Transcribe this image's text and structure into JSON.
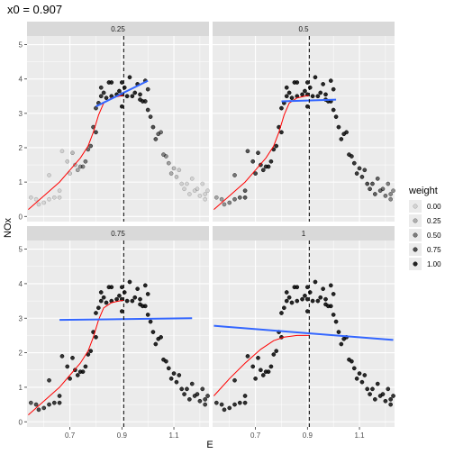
{
  "chart_data": {
    "type": "scatter",
    "title": "x0 =  0.907",
    "xlabel": "E",
    "ylabel": "NOx",
    "xlim": [
      0.535,
      1.235
    ],
    "ylim": [
      -0.15,
      5.25
    ],
    "x_ticks": [
      0.7,
      0.9,
      1.1
    ],
    "x_tick_labels": [
      "0.7",
      "0.9",
      "1.1"
    ],
    "y_ticks": [
      0,
      1,
      2,
      3,
      4,
      5
    ],
    "y_tick_labels": [
      "0",
      "1",
      "2",
      "3",
      "4",
      "5"
    ],
    "x0": 0.907,
    "grid": true,
    "legend": {
      "title": "weight",
      "position": "right",
      "entries": [
        {
          "label": "0.00",
          "alpha": 0.12
        },
        {
          "label": "0.25",
          "alpha": 0.3
        },
        {
          "label": "0.50",
          "alpha": 0.55
        },
        {
          "label": "0.75",
          "alpha": 0.78
        },
        {
          "label": "1.00",
          "alpha": 1.0
        }
      ]
    },
    "colors": {
      "panel_bg": "#ebebeb",
      "strip_bg": "#d9d9d9",
      "grid": "#ffffff",
      "loess": "#ff0000",
      "local_fit": "#3366ff",
      "vline": "#000000"
    },
    "points": [
      [
        0.55,
        0.55
      ],
      [
        0.57,
        0.5
      ],
      [
        0.58,
        0.35
      ],
      [
        0.6,
        0.4
      ],
      [
        0.62,
        0.5
      ],
      [
        0.62,
        1.2
      ],
      [
        0.64,
        0.55
      ],
      [
        0.66,
        0.55
      ],
      [
        0.66,
        0.75
      ],
      [
        0.67,
        1.9
      ],
      [
        0.69,
        1.6
      ],
      [
        0.7,
        1.25
      ],
      [
        0.71,
        1.85
      ],
      [
        0.72,
        1.5
      ],
      [
        0.73,
        1.35
      ],
      [
        0.74,
        1.45
      ],
      [
        0.75,
        1.45
      ],
      [
        0.76,
        1.6
      ],
      [
        0.77,
        1.95
      ],
      [
        0.78,
        2.05
      ],
      [
        0.79,
        2.6
      ],
      [
        0.8,
        2.45
      ],
      [
        0.8,
        3.15
      ],
      [
        0.81,
        3.3
      ],
      [
        0.82,
        3.5
      ],
      [
        0.82,
        3.75
      ],
      [
        0.83,
        3.6
      ],
      [
        0.84,
        3.45
      ],
      [
        0.85,
        3.9
      ],
      [
        0.86,
        3.9
      ],
      [
        0.86,
        3.5
      ],
      [
        0.88,
        3.55
      ],
      [
        0.89,
        3.65
      ],
      [
        0.9,
        3.55
      ],
      [
        0.9,
        3.9
      ],
      [
        0.9,
        3.2
      ],
      [
        0.91,
        3.75
      ],
      [
        0.92,
        3.5
      ],
      [
        0.93,
        4.05
      ],
      [
        0.94,
        3.5
      ],
      [
        0.95,
        3.6
      ],
      [
        0.96,
        3.85
      ],
      [
        0.97,
        3.4
      ],
      [
        0.97,
        3.55
      ],
      [
        0.98,
        3.35
      ],
      [
        0.99,
        3.95
      ],
      [
        0.99,
        3.35
      ],
      [
        1.0,
        3.1
      ],
      [
        1.0,
        3.7
      ],
      [
        1.01,
        2.9
      ],
      [
        1.02,
        2.6
      ],
      [
        1.03,
        2.25
      ],
      [
        1.04,
        2.4
      ],
      [
        1.05,
        2.45
      ],
      [
        1.06,
        1.8
      ],
      [
        1.07,
        1.75
      ],
      [
        1.08,
        1.55
      ],
      [
        1.09,
        1.25
      ],
      [
        1.1,
        1.4
      ],
      [
        1.11,
        1.15
      ],
      [
        1.12,
        1.35
      ],
      [
        1.13,
        0.95
      ],
      [
        1.14,
        0.8
      ],
      [
        1.15,
        0.95
      ],
      [
        1.16,
        0.65
      ],
      [
        1.17,
        1.1
      ],
      [
        1.18,
        0.75
      ],
      [
        1.19,
        0.8
      ],
      [
        1.2,
        0.6
      ],
      [
        1.21,
        0.95
      ],
      [
        1.22,
        0.5
      ],
      [
        1.23,
        0.75
      ],
      [
        1.22,
        0.65
      ]
    ],
    "loess_curve": [
      [
        0.54,
        0.2
      ],
      [
        0.6,
        0.6
      ],
      [
        0.66,
        1.0
      ],
      [
        0.7,
        1.35
      ],
      [
        0.74,
        1.7
      ],
      [
        0.77,
        2.05
      ],
      [
        0.79,
        2.45
      ],
      [
        0.81,
        2.95
      ],
      [
        0.83,
        3.3
      ],
      [
        0.86,
        3.45
      ],
      [
        0.89,
        3.5
      ],
      [
        0.907,
        3.52
      ]
    ],
    "panels": [
      {
        "label": "0.25",
        "bandwidth": 0.25,
        "loess_until": 0.907,
        "local_fit": [
          [
            0.8,
            3.2
          ],
          [
            1.0,
            3.95
          ]
        ]
      },
      {
        "label": "0.5",
        "bandwidth": 0.5,
        "loess_until": 0.87,
        "local_fit": [
          [
            0.8,
            3.35
          ],
          [
            1.01,
            3.4
          ]
        ]
      },
      {
        "label": "0.75",
        "bandwidth": 0.75,
        "loess_until": 0.9,
        "local_fit": [
          [
            0.66,
            2.95
          ],
          [
            1.17,
            3.0
          ]
        ]
      },
      {
        "label": "1",
        "bandwidth": 1.0,
        "loess_until": 0.907,
        "local_fit": [
          [
            0.54,
            2.78
          ],
          [
            1.23,
            2.37
          ]
        ]
      }
    ],
    "panel4_loess_override": [
      [
        0.54,
        0.75
      ],
      [
        0.6,
        1.25
      ],
      [
        0.66,
        1.7
      ],
      [
        0.72,
        2.1
      ],
      [
        0.77,
        2.35
      ],
      [
        0.81,
        2.45
      ],
      [
        0.86,
        2.5
      ],
      [
        0.907,
        2.5
      ]
    ]
  }
}
